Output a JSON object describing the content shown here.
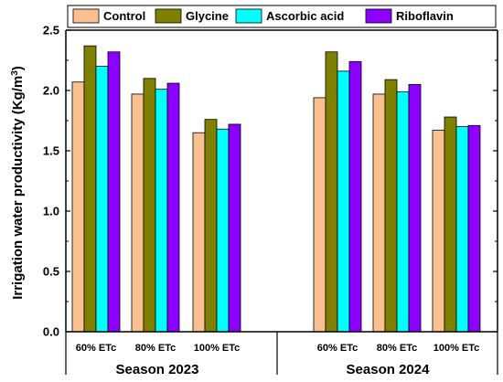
{
  "chart_data": {
    "type": "bar",
    "ylabel": "Irrigation water productivity (Kg/m³)",
    "ylabel_main": "Irrigation water productivity (Kg/m",
    "ylabel_sup": "3",
    "ylabel_close": ")",
    "ylim": [
      0,
      2.5
    ],
    "yticks": [
      "0.0",
      "0.5",
      "1.0",
      "1.5",
      "2.0",
      "2.5"
    ],
    "groups": [
      "Season 2023",
      "Season 2024"
    ],
    "categories": [
      "60% ETc",
      "80% ETc",
      "100% ETc",
      "60% ETc",
      "80% ETc",
      "100% ETc"
    ],
    "series": [
      {
        "name": "Control",
        "color": "#FAC090",
        "values": [
          2.07,
          1.97,
          1.65,
          1.94,
          1.97,
          1.67
        ]
      },
      {
        "name": "Glycine",
        "color": "#808000",
        "values": [
          2.37,
          2.1,
          1.76,
          2.32,
          2.09,
          1.78
        ]
      },
      {
        "name": "Ascorbic acid",
        "color": "#00FFFF",
        "values": [
          2.2,
          2.01,
          1.68,
          2.16,
          1.99,
          1.7
        ]
      },
      {
        "name": "Riboflavin",
        "color": "#8B00FF",
        "values": [
          2.32,
          2.06,
          1.72,
          2.24,
          2.05,
          1.71
        ]
      }
    ],
    "legend_position": "top",
    "grid": false
  }
}
